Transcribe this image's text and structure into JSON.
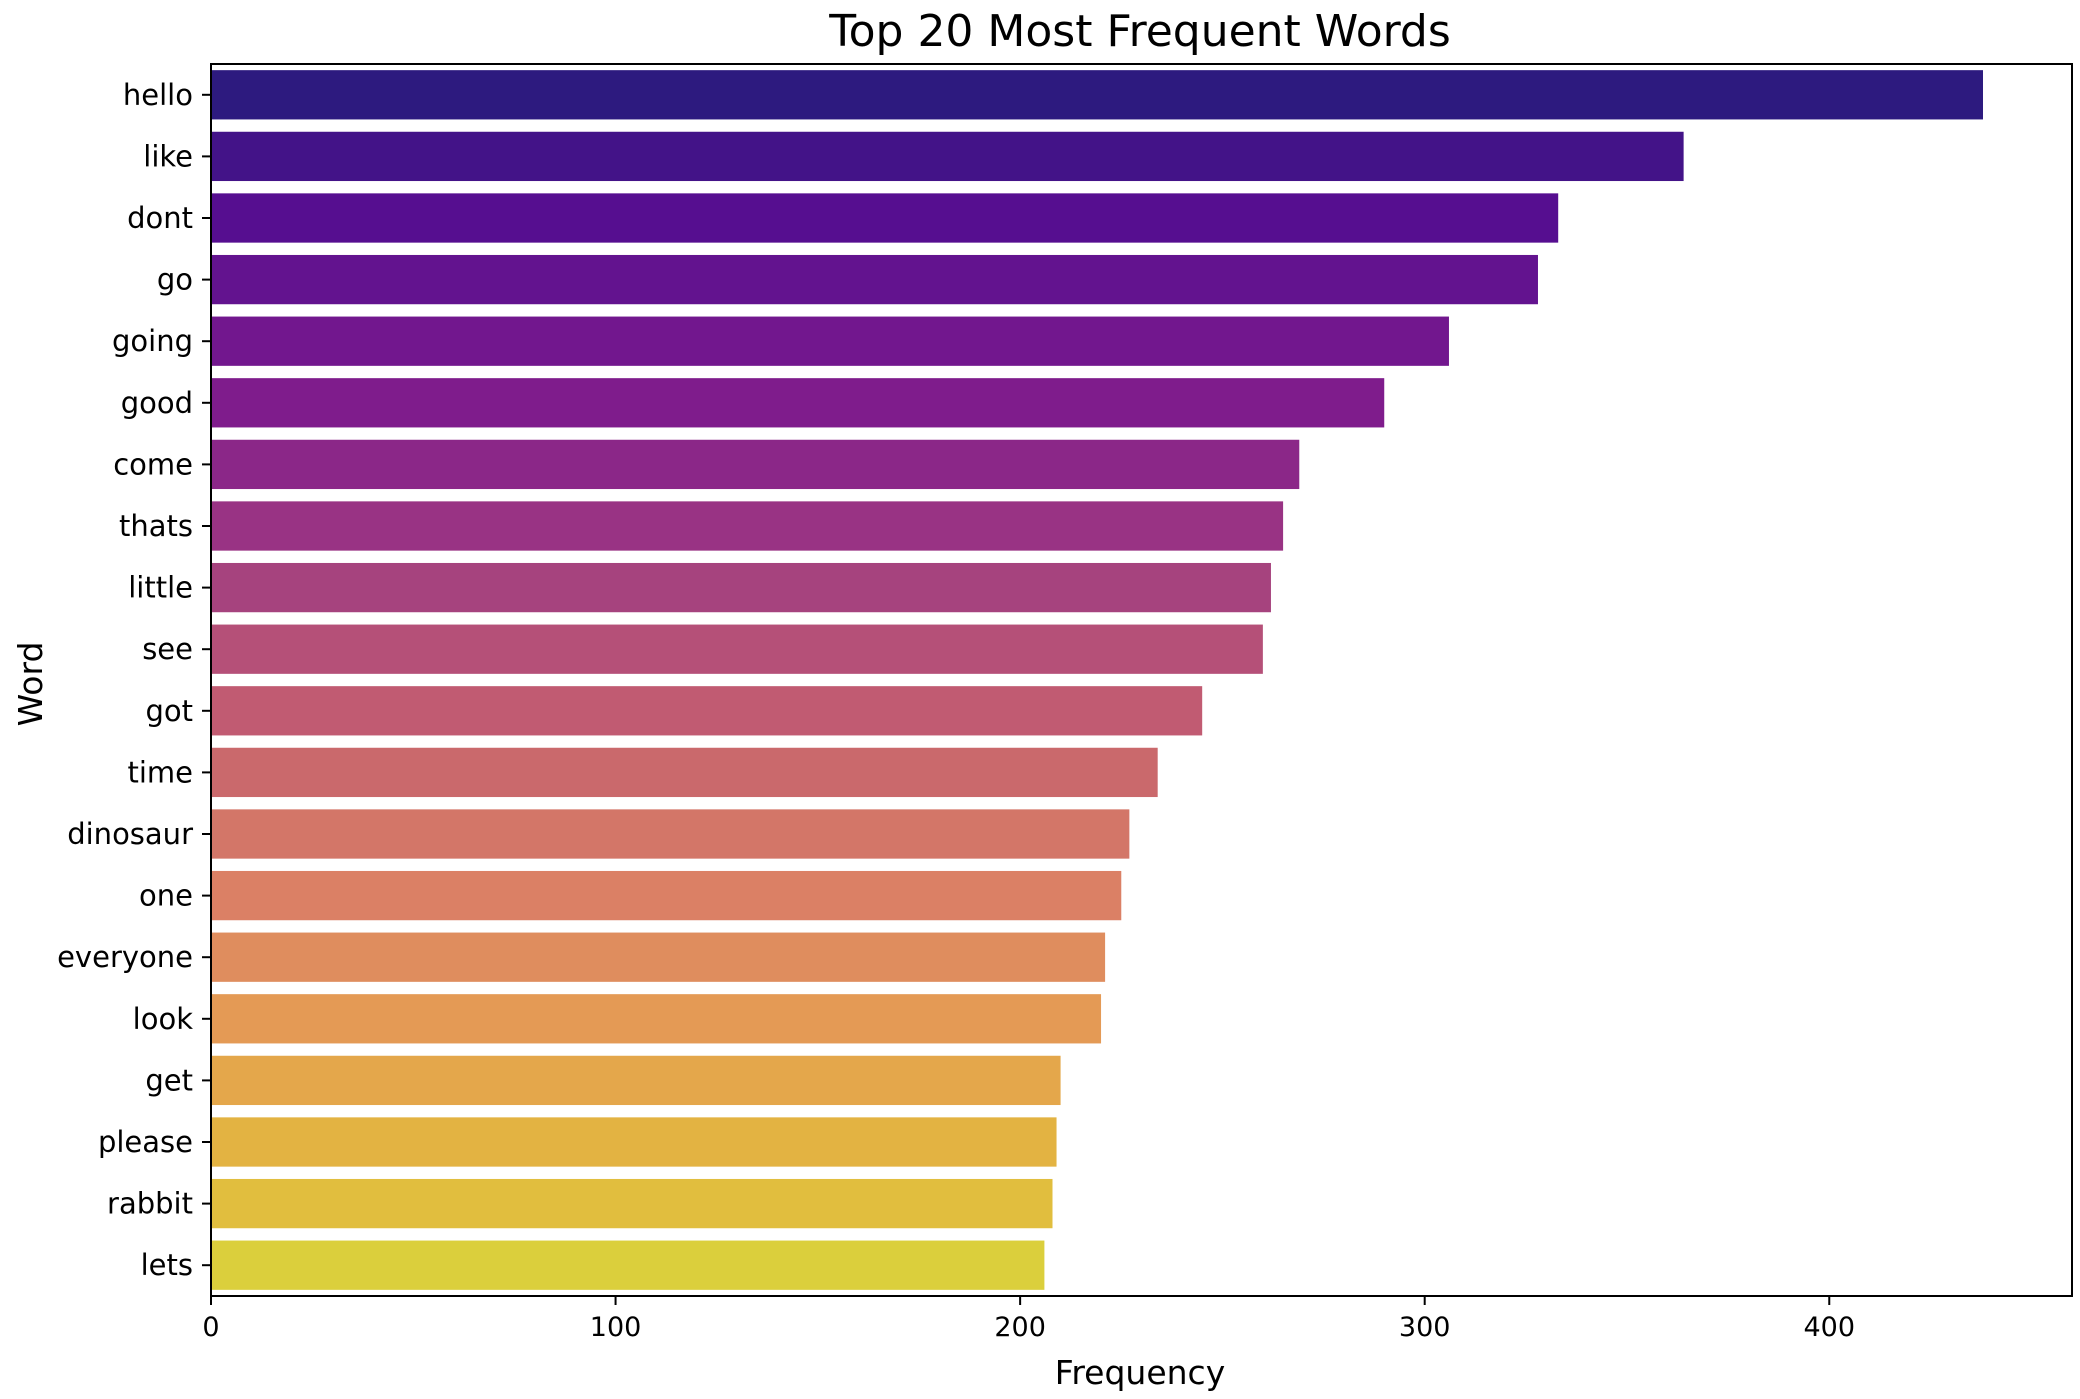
{
  "chart_data": {
    "type": "bar",
    "orientation": "horizontal",
    "title": "Top 20 Most Frequent Words",
    "xlabel": "Frequency",
    "ylabel": "Word",
    "xlim": [
      0,
      460
    ],
    "xticks": [
      0,
      100,
      200,
      300,
      400
    ],
    "grid": false,
    "palette": "plasma",
    "categories": [
      "hello",
      "like",
      "dont",
      "go",
      "going",
      "good",
      "come",
      "thats",
      "little",
      "see",
      "got",
      "time",
      "dinosaur",
      "one",
      "everyone",
      "look",
      "get",
      "please",
      "rabbit",
      "lets"
    ],
    "values": [
      438,
      364,
      333,
      328,
      306,
      290,
      269,
      265,
      262,
      260,
      245,
      234,
      227,
      225,
      221,
      220,
      210,
      209,
      208,
      206
    ],
    "colors": [
      "#2d1a7f",
      "#431388",
      "#560e90",
      "#63138f",
      "#72178e",
      "#7f1c8c",
      "#8b2788",
      "#993384",
      "#a6437e",
      "#b55078",
      "#c15b72",
      "#ca696c",
      "#d37668",
      "#db8065",
      "#df8d5e",
      "#e49a55",
      "#e4a74b",
      "#e3b342",
      "#e1be3e",
      "#dbcf3c"
    ]
  }
}
